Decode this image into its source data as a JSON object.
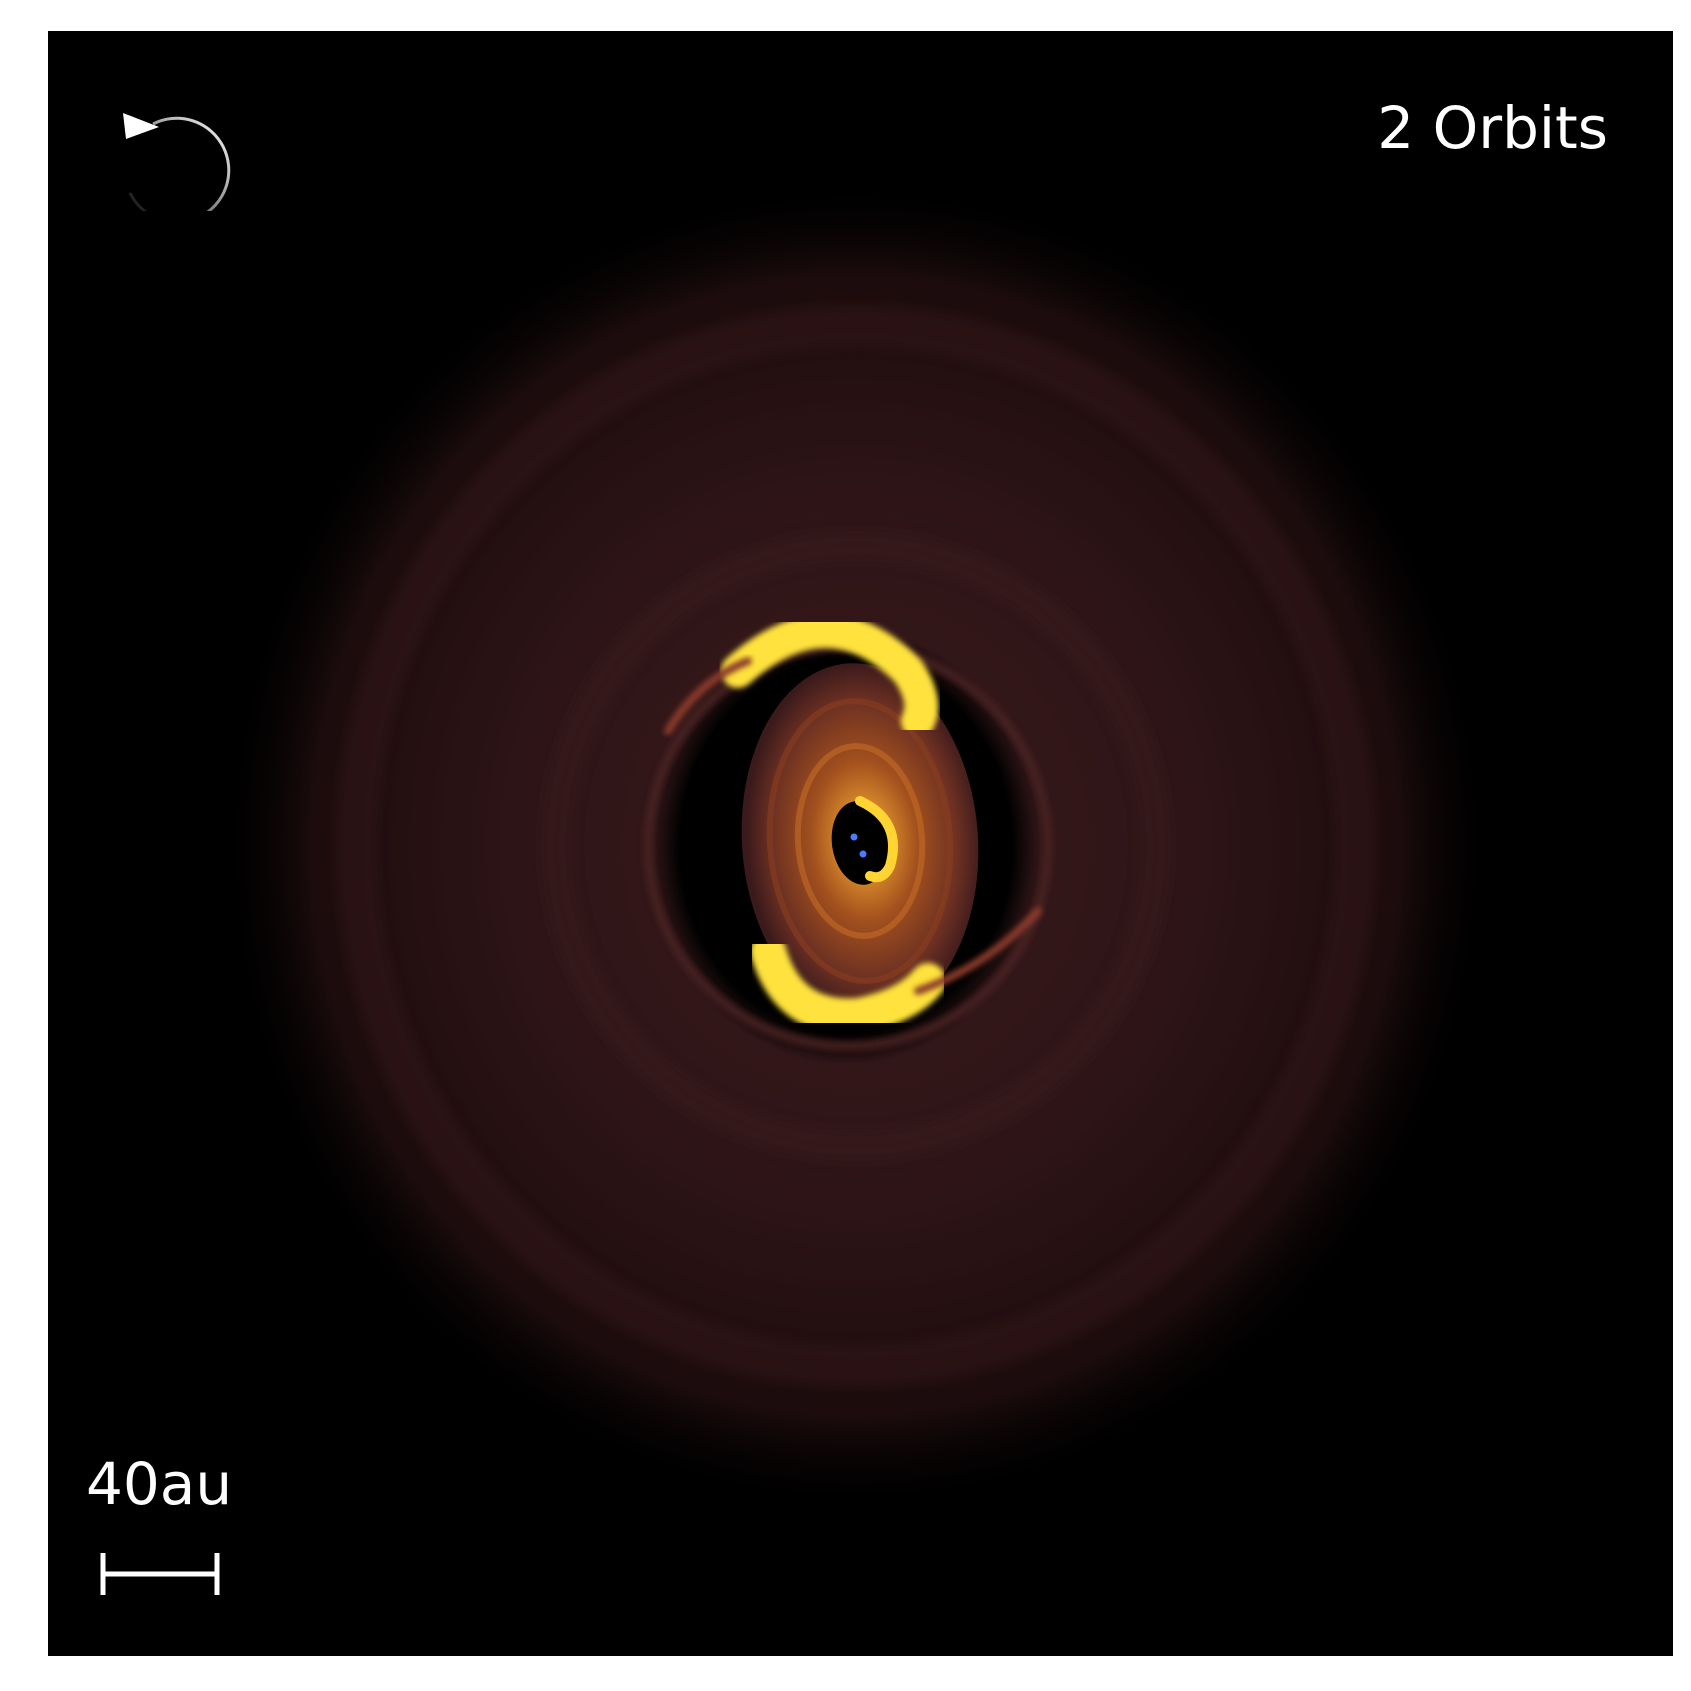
{
  "overlay": {
    "orbit_count_label": "2 Orbits",
    "scale_label": "40au",
    "rotation_icon": "counterclockwise-rotation-arrow-icon",
    "scale_bar_icon": "scale-bar-icon"
  },
  "colors": {
    "background": "#000000",
    "frame_border": "#ffffff",
    "outer_disc": "#2a1416",
    "inner_disc": "#b0561c",
    "bright_arc": "#ffe040",
    "stars": "#4a7dff",
    "text": "#ffffff"
  }
}
